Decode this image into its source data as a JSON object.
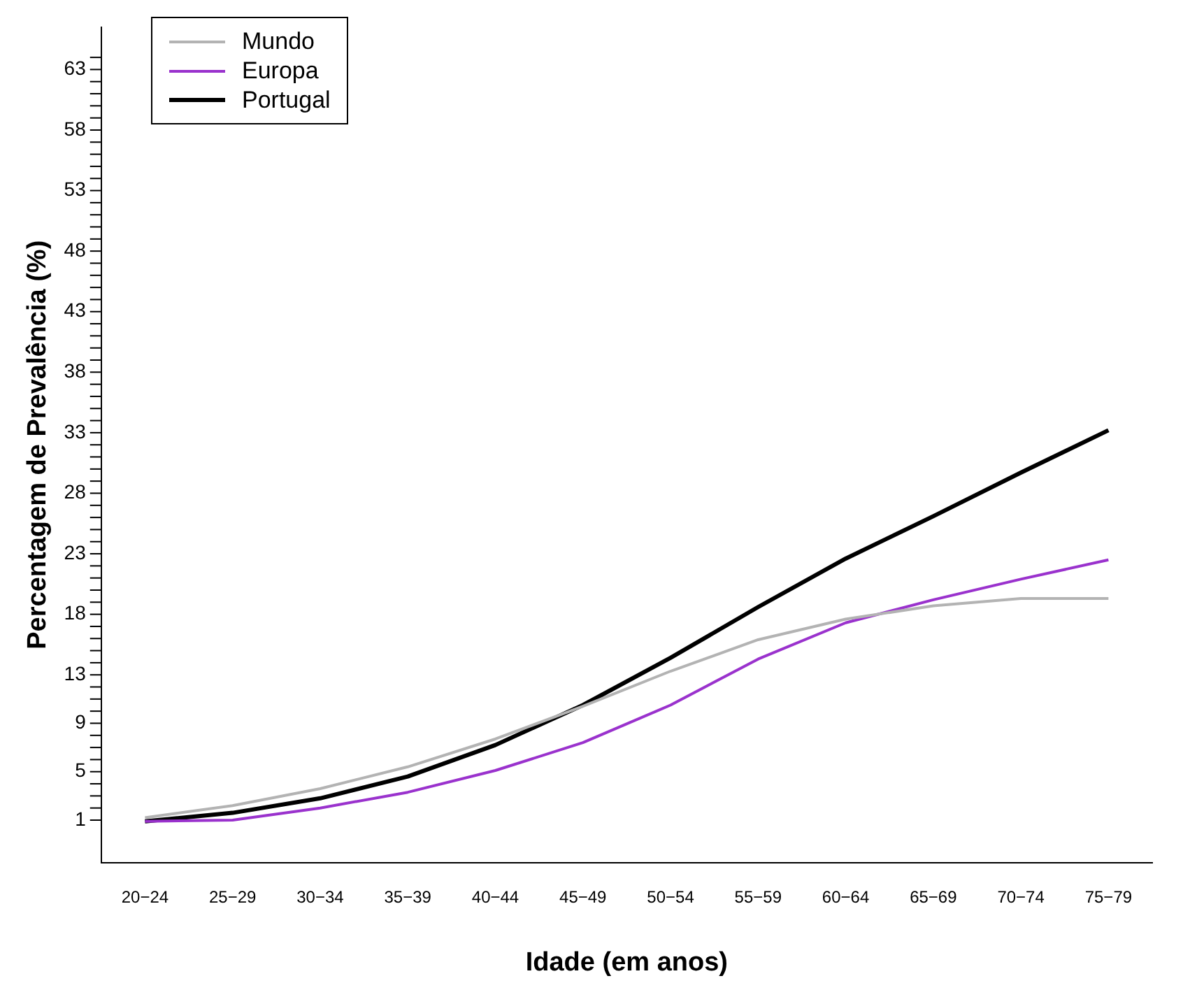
{
  "chart_data": {
    "type": "line",
    "xlabel": "Idade (em anos)",
    "ylabel": "Percentagem de Prevalência (%)",
    "categories": [
      "20−24",
      "25−29",
      "30−34",
      "35−39",
      "40−44",
      "45−49",
      "50−54",
      "55−59",
      "60−64",
      "65−69",
      "70−74",
      "75−79"
    ],
    "series": [
      {
        "name": "Mundo",
        "color": "#b3b3b3",
        "values": [
          1.2,
          2.2,
          3.6,
          5.4,
          7.7,
          10.4,
          13.3,
          15.9,
          17.6,
          18.7,
          19.3,
          19.3
        ]
      },
      {
        "name": "Europa",
        "color": "#9a32cd",
        "values": [
          0.9,
          1.0,
          2.0,
          3.3,
          5.1,
          7.4,
          10.5,
          14.3,
          17.3,
          19.2,
          20.9,
          22.5
        ]
      },
      {
        "name": "Portugal",
        "color": "#000000",
        "values": [
          0.9,
          1.6,
          2.8,
          4.6,
          7.2,
          10.5,
          14.4,
          18.6,
          22.6,
          26.1,
          29.7,
          33.2
        ]
      }
    ],
    "ylim": [
      -2.5,
      66.5
    ],
    "yticks": [
      1,
      {
        "value": 2,
        "label": null
      },
      {
        "value": 3,
        "label": null
      },
      {
        "value": 4,
        "label": null
      },
      5,
      {
        "value": 6,
        "label": null
      },
      {
        "value": 7,
        "label": null
      },
      {
        "value": 8,
        "label": null
      },
      9,
      {
        "value": 10,
        "label": null
      },
      {
        "value": 11,
        "label": null
      },
      {
        "value": 12,
        "label": null
      },
      13,
      {
        "value": 14,
        "label": null
      },
      {
        "value": 15,
        "label": null
      },
      {
        "value": 16,
        "label": null
      },
      {
        "value": 17,
        "label": null
      },
      18,
      {
        "value": 19,
        "label": null
      },
      {
        "value": 20,
        "label": null
      },
      {
        "value": 21,
        "label": null
      },
      {
        "value": 22,
        "label": null
      },
      23,
      {
        "value": 24,
        "label": null
      },
      {
        "value": 25,
        "label": null
      },
      {
        "value": 26,
        "label": null
      },
      {
        "value": 27,
        "label": null
      },
      28,
      {
        "value": 29,
        "label": null
      },
      {
        "value": 30,
        "label": null
      },
      {
        "value": 31,
        "label": null
      },
      {
        "value": 32,
        "label": null
      },
      33,
      {
        "value": 34,
        "label": null
      },
      {
        "value": 35,
        "label": null
      },
      {
        "value": 36,
        "label": null
      },
      {
        "value": 37,
        "label": null
      },
      38,
      {
        "value": 39,
        "label": null
      },
      {
        "value": 40,
        "label": null
      },
      {
        "value": 41,
        "label": null
      },
      {
        "value": 42,
        "label": null
      },
      43,
      {
        "value": 44,
        "label": null
      },
      {
        "value": 45,
        "label": null
      },
      {
        "value": 46,
        "label": null
      },
      {
        "value": 47,
        "label": null
      },
      48,
      {
        "value": 49,
        "label": null
      },
      {
        "value": 50,
        "label": null
      },
      {
        "value": 51,
        "label": null
      },
      {
        "value": 52,
        "label": null
      },
      53,
      {
        "value": 54,
        "label": null
      },
      {
        "value": 55,
        "label": null
      },
      {
        "value": 56,
        "label": null
      },
      {
        "value": 57,
        "label": null
      },
      58,
      {
        "value": 59,
        "label": null
      },
      {
        "value": 60,
        "label": null
      },
      {
        "value": 61,
        "label": null
      },
      {
        "value": 62,
        "label": null
      },
      63,
      {
        "value": 64,
        "label": null
      }
    ],
    "grid": false,
    "legend": "top left",
    "marker": "none",
    "line_style": "solid"
  }
}
